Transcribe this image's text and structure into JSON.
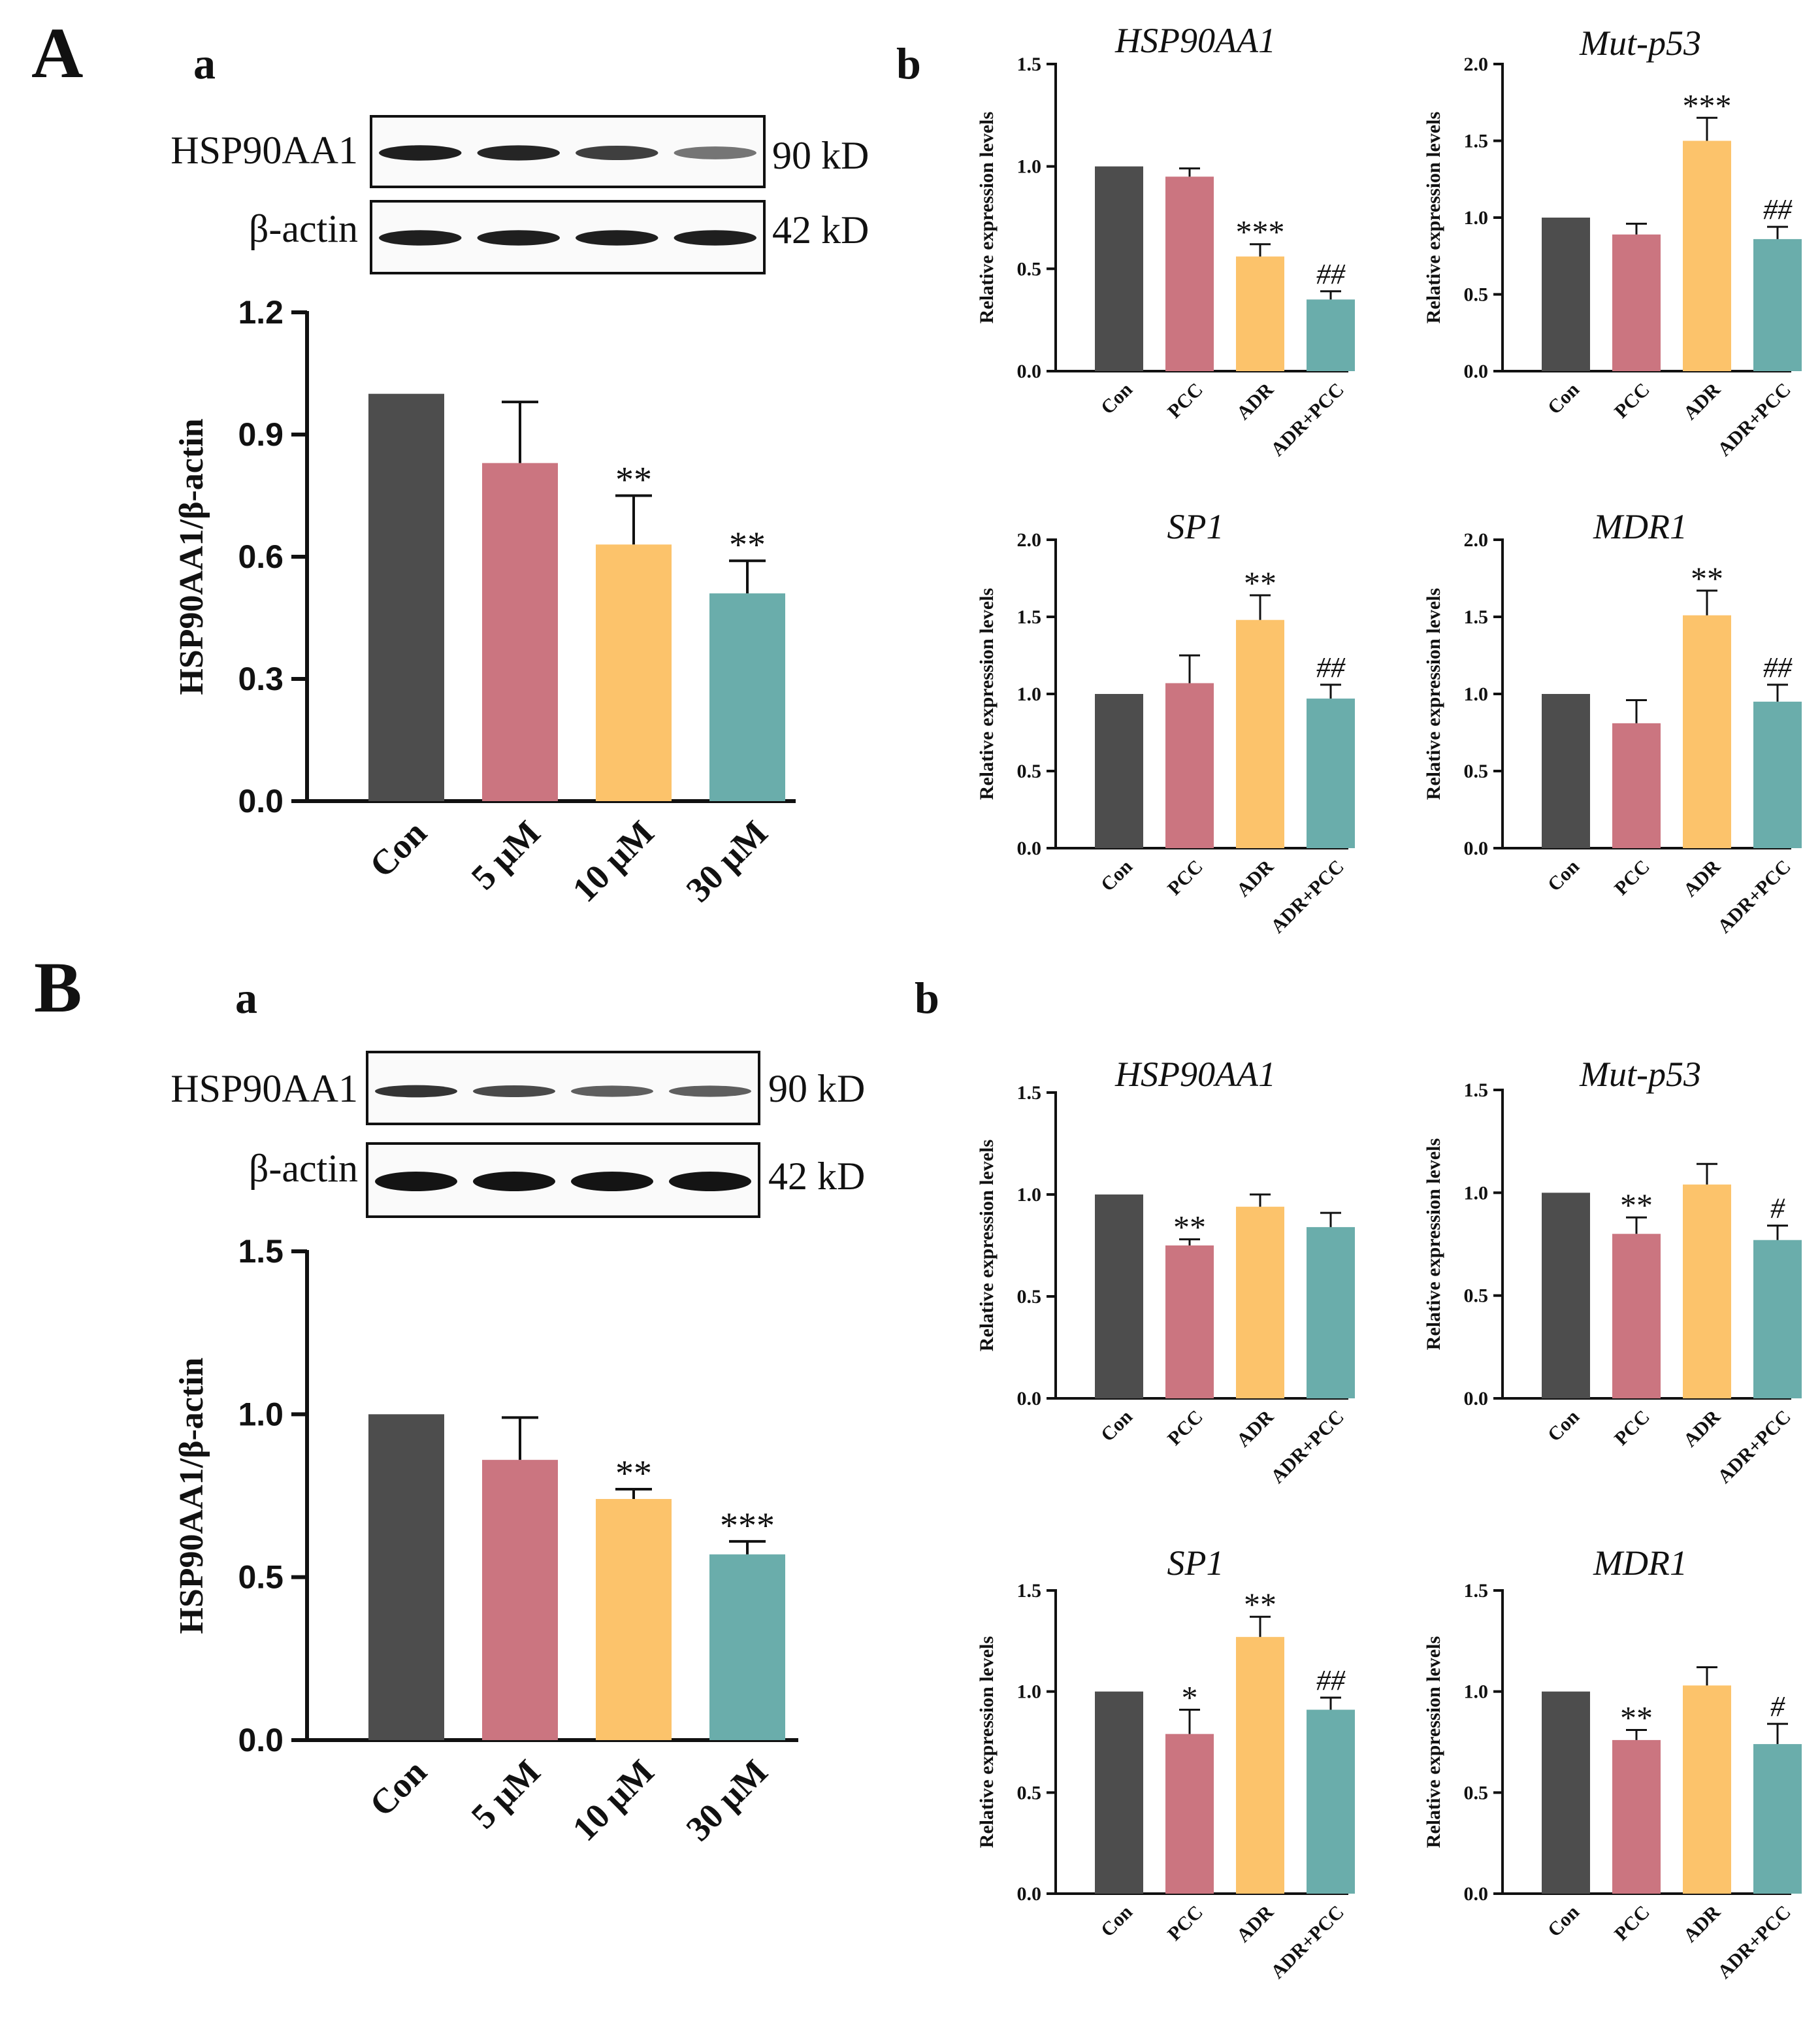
{
  "colors": [
    "#4d4d4d",
    "#cb7580",
    "#fcc36b",
    "#6aadab"
  ],
  "panels": [
    {
      "letter": "A",
      "western": {
        "letter": "a",
        "rows": [
          {
            "label": "HSP90AA1",
            "size": "90 kD",
            "intensities": [
              0.95,
              0.92,
              0.8,
              0.55
            ]
          },
          {
            "label": "β-actin",
            "size": "42 kD",
            "intensities": [
              0.95,
              0.95,
              0.95,
              0.95
            ]
          }
        ]
      },
      "qpcr_letter": "b"
    },
    {
      "letter": "B",
      "western": {
        "letter": "a",
        "rows": [
          {
            "label": "HSP90AA1",
            "size": "90 kD",
            "intensities": [
              0.85,
              0.75,
              0.65,
              0.65
            ]
          },
          {
            "label": "β-actin",
            "size": "42 kD",
            "intensities": [
              1.0,
              1.0,
              1.0,
              1.0
            ]
          }
        ]
      },
      "qpcr_letter": "b"
    }
  ],
  "chart_data": [
    {
      "id": "A-a",
      "type": "bar",
      "title": "",
      "ylabel": "HSP90AA1/β-actin",
      "categories": [
        "Con",
        "5 μM",
        "10 μM",
        "30 μM"
      ],
      "values": [
        1.0,
        0.83,
        0.63,
        0.51
      ],
      "errors": [
        0,
        0.15,
        0.12,
        0.08
      ],
      "sig": [
        "",
        "",
        "**",
        "**"
      ],
      "ylim": [
        0,
        1.2
      ],
      "yticks": [
        "0.0",
        "0.3",
        "0.6",
        "0.9",
        "1.2"
      ]
    },
    {
      "id": "A-b-1",
      "type": "bar",
      "title": "HSP90AA1",
      "ylabel": "Relative expression levels",
      "categories": [
        "Con",
        "PCC",
        "ADR",
        "ADR+PCC"
      ],
      "values": [
        1.0,
        0.95,
        0.56,
        0.35
      ],
      "errors": [
        0,
        0.04,
        0.06,
        0.04
      ],
      "sig": [
        "",
        "",
        "***",
        "##"
      ],
      "ylim": [
        0,
        1.5
      ],
      "yticks": [
        "0.0",
        "0.5",
        "1.0",
        "1.5"
      ]
    },
    {
      "id": "A-b-2",
      "type": "bar",
      "title": "Mut-p53",
      "ylabel": "Relative expression levels",
      "categories": [
        "Con",
        "PCC",
        "ADR",
        "ADR+PCC"
      ],
      "values": [
        1.0,
        0.89,
        1.5,
        0.86
      ],
      "errors": [
        0,
        0.07,
        0.15,
        0.08
      ],
      "sig": [
        "",
        "",
        "***",
        "##"
      ],
      "ylim": [
        0,
        2.0
      ],
      "yticks": [
        "0.0",
        "0.5",
        "1.0",
        "1.5",
        "2.0"
      ]
    },
    {
      "id": "A-b-3",
      "type": "bar",
      "title": "SP1",
      "ylabel": "Relative expression levels",
      "categories": [
        "Con",
        "PCC",
        "ADR",
        "ADR+PCC"
      ],
      "values": [
        1.0,
        1.07,
        1.48,
        0.97
      ],
      "errors": [
        0,
        0.18,
        0.16,
        0.09
      ],
      "sig": [
        "",
        "",
        "**",
        "##"
      ],
      "ylim": [
        0,
        2.0
      ],
      "yticks": [
        "0.0",
        "0.5",
        "1.0",
        "1.5",
        "2.0"
      ]
    },
    {
      "id": "A-b-4",
      "type": "bar",
      "title": "MDR1",
      "ylabel": "Relative expression levels",
      "categories": [
        "Con",
        "PCC",
        "ADR",
        "ADR+PCC"
      ],
      "values": [
        1.0,
        0.81,
        1.51,
        0.95
      ],
      "errors": [
        0,
        0.15,
        0.16,
        0.11
      ],
      "sig": [
        "",
        "",
        "**",
        "##"
      ],
      "ylim": [
        0,
        2.0
      ],
      "yticks": [
        "0.0",
        "0.5",
        "1.0",
        "1.5",
        "2.0"
      ]
    },
    {
      "id": "B-a",
      "type": "bar",
      "title": "",
      "ylabel": "HSP90AA1/β-actin",
      "categories": [
        "Con",
        "5 μM",
        "10 μM",
        "30 μM"
      ],
      "values": [
        1.0,
        0.86,
        0.74,
        0.57
      ],
      "errors": [
        0,
        0.13,
        0.03,
        0.04
      ],
      "sig": [
        "",
        "",
        "**",
        "***"
      ],
      "ylim": [
        0,
        1.5
      ],
      "yticks": [
        "0.0",
        "0.5",
        "1.0",
        "1.5"
      ]
    },
    {
      "id": "B-b-1",
      "type": "bar",
      "title": "HSP90AA1",
      "ylabel": "Relative expression levels",
      "categories": [
        "Con",
        "PCC",
        "ADR",
        "ADR+PCC"
      ],
      "values": [
        1.0,
        0.75,
        0.94,
        0.84
      ],
      "errors": [
        0,
        0.03,
        0.06,
        0.07
      ],
      "sig": [
        "",
        "**",
        "",
        ""
      ],
      "ylim": [
        0,
        1.5
      ],
      "yticks": [
        "0.0",
        "0.5",
        "1.0",
        "1.5"
      ]
    },
    {
      "id": "B-b-2",
      "type": "bar",
      "title": "Mut-p53",
      "ylabel": "Relative expression levels",
      "categories": [
        "Con",
        "PCC",
        "ADR",
        "ADR+PCC"
      ],
      "values": [
        1.0,
        0.8,
        1.04,
        0.77
      ],
      "errors": [
        0,
        0.08,
        0.1,
        0.07
      ],
      "sig": [
        "",
        "**",
        "",
        "#"
      ],
      "ylim": [
        0,
        1.5
      ],
      "yticks": [
        "0.0",
        "0.5",
        "1.0",
        "1.5"
      ]
    },
    {
      "id": "B-b-3",
      "type": "bar",
      "title": "SP1",
      "ylabel": "Relative expression levels",
      "categories": [
        "Con",
        "PCC",
        "ADR",
        "ADR+PCC"
      ],
      "values": [
        1.0,
        0.79,
        1.27,
        0.91
      ],
      "errors": [
        0,
        0.12,
        0.1,
        0.06
      ],
      "sig": [
        "",
        "*",
        "**",
        "##"
      ],
      "ylim": [
        0,
        1.5
      ],
      "yticks": [
        "0.0",
        "0.5",
        "1.0",
        "1.5"
      ]
    },
    {
      "id": "B-b-4",
      "type": "bar",
      "title": "MDR1",
      "ylabel": "Relative expression levels",
      "categories": [
        "Con",
        "PCC",
        "ADR",
        "ADR+PCC"
      ],
      "values": [
        1.0,
        0.76,
        1.03,
        0.74
      ],
      "errors": [
        0,
        0.05,
        0.09,
        0.1
      ],
      "sig": [
        "",
        "**",
        "",
        "#"
      ],
      "ylim": [
        0,
        1.5
      ],
      "yticks": [
        "0.0",
        "0.5",
        "1.0",
        "1.5"
      ]
    }
  ]
}
